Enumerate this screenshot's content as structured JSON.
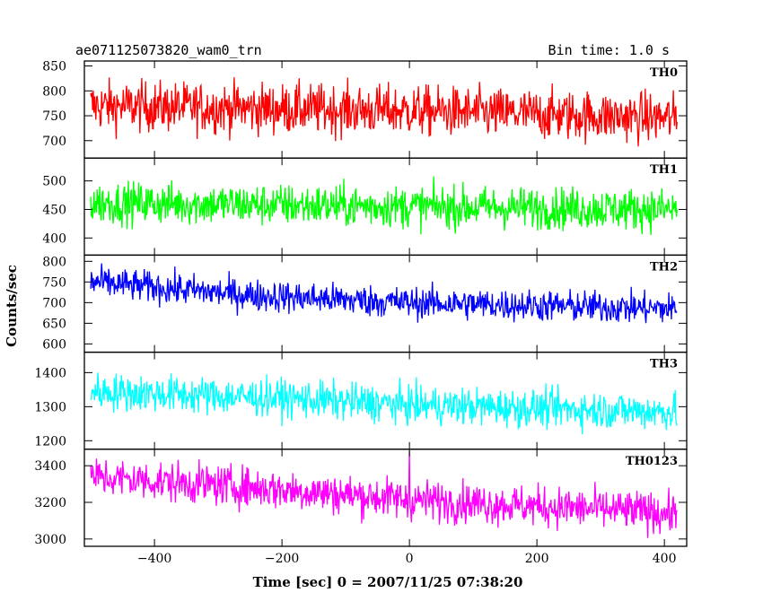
{
  "header": {
    "title": "ae071125073820_wam0_trn",
    "bin_time": "Bin time: 1.0 s"
  },
  "chart_data": {
    "type": "line",
    "xlabel": "Time [sec] 0 = 2007/11/25 07:38:20",
    "ylabel": "Counts/sec",
    "xlim": [
      -510,
      435
    ],
    "x_ticks": [
      -400,
      -200,
      0,
      200,
      400
    ],
    "x_range": [
      -500,
      420
    ],
    "panels": [
      {
        "name": "TH0",
        "color": "#ff0000",
        "ylim": [
          665,
          860
        ],
        "y_ticks": [
          700,
          750,
          800,
          850
        ],
        "trend": [
          [
            -500,
            770
          ],
          [
            0,
            760
          ],
          [
            420,
            745
          ]
        ],
        "noise_amplitude": 55,
        "spike": null
      },
      {
        "name": "TH1",
        "color": "#00ff00",
        "ylim": [
          370,
          540
        ],
        "y_ticks": [
          400,
          450,
          500
        ],
        "trend": [
          [
            -500,
            462
          ],
          [
            0,
            455
          ],
          [
            420,
            450
          ]
        ],
        "noise_amplitude": 40,
        "spike": null
      },
      {
        "name": "TH2",
        "color": "#0000ff",
        "ylim": [
          580,
          815
        ],
        "y_ticks": [
          600,
          650,
          700,
          750,
          800
        ],
        "trend": [
          [
            -500,
            750
          ],
          [
            -250,
            718
          ],
          [
            0,
            700
          ],
          [
            420,
            685
          ]
        ],
        "noise_amplitude": 42,
        "spike": null
      },
      {
        "name": "TH3",
        "color": "#00ffff",
        "ylim": [
          1175,
          1460
        ],
        "y_ticks": [
          1200,
          1300,
          1400
        ],
        "trend": [
          [
            -500,
            1345
          ],
          [
            -200,
            1325
          ],
          [
            0,
            1305
          ],
          [
            420,
            1285
          ]
        ],
        "noise_amplitude": 60,
        "spike": null
      },
      {
        "name": "TH0123",
        "color": "#ff00ff",
        "ylim": [
          2960,
          3490
        ],
        "y_ticks": [
          3000,
          3200,
          3400
        ],
        "trend": [
          [
            -500,
            3340
          ],
          [
            -200,
            3270
          ],
          [
            0,
            3215
          ],
          [
            420,
            3140
          ]
        ],
        "noise_amplitude": 120,
        "spike": {
          "x": 0,
          "y": 3480
        }
      }
    ]
  }
}
